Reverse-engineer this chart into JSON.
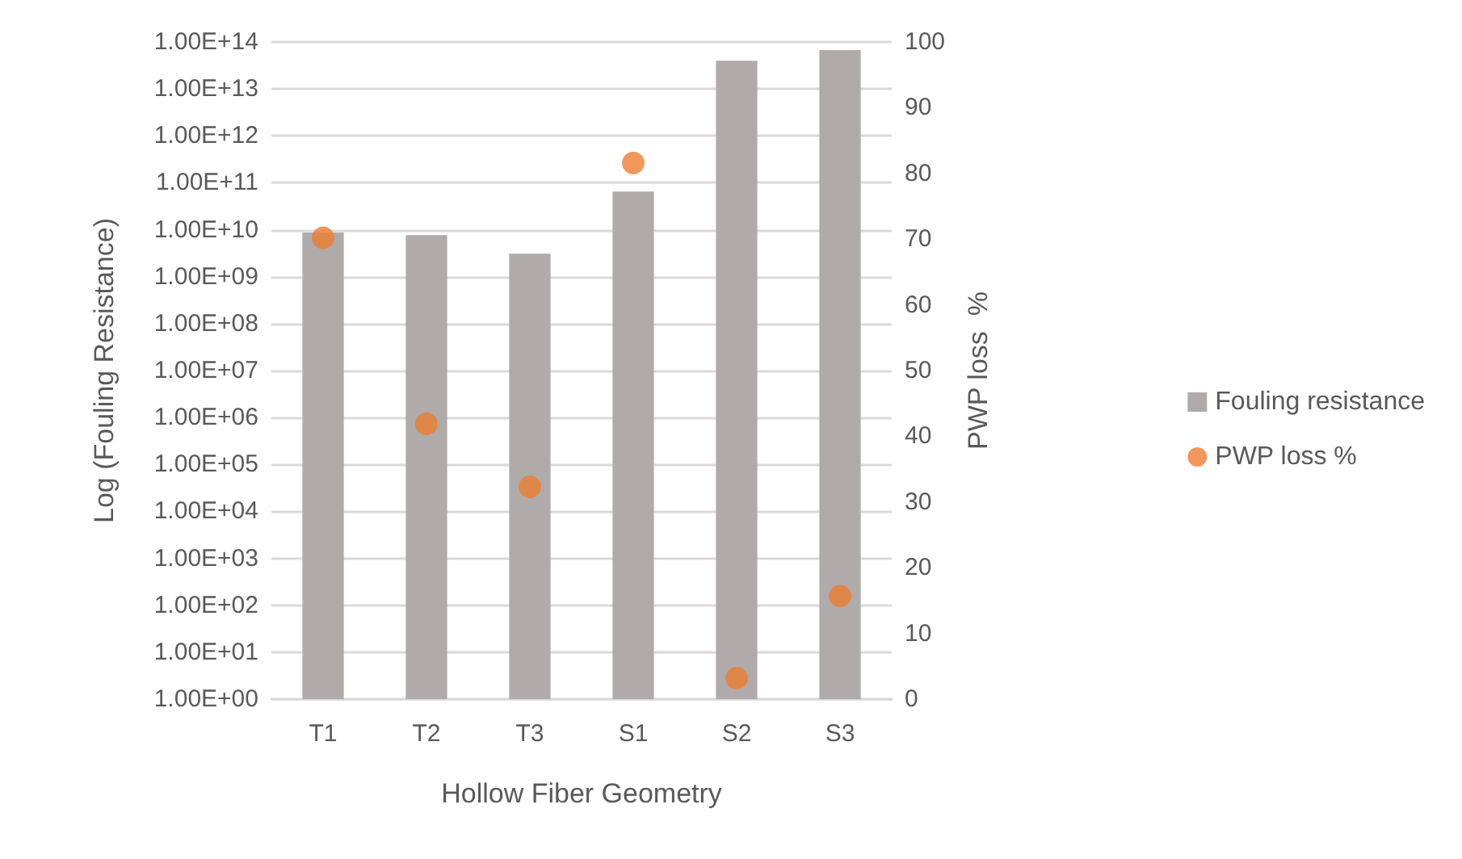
{
  "chart_data": {
    "type": "bar",
    "xlabel": "Hollow Fiber Geometry",
    "ylabel": "Log (Fouling Resistance)",
    "y2label": "PWP loss  %",
    "categories": [
      "T1",
      "T2",
      "T3",
      "S1",
      "S2",
      "S3"
    ],
    "series": [
      {
        "name": "Fouling resistance",
        "color": "#afabab",
        "values": [
          8700000000.0,
          7700000000.0,
          3100000000.0,
          65000000000.0,
          40000000000000.0,
          67000000000000.0
        ]
      },
      {
        "name": "PWP loss %",
        "type": "scatter",
        "axis": "y2",
        "color": "#ed7d31",
        "values": [
          70.2,
          41.9,
          32.3,
          81.6,
          3.2,
          15.7
        ]
      }
    ],
    "log": "y",
    "ylim": [
      1,
      100000000000000.0
    ],
    "yticks": [
      {
        "value": 1,
        "label": "1.00E+00"
      },
      {
        "value": 10,
        "label": "1.00E+01"
      },
      {
        "value": 100,
        "label": "1.00E+02"
      },
      {
        "value": 1000,
        "label": "1.00E+03"
      },
      {
        "value": 10000.0,
        "label": "1.00E+04"
      },
      {
        "value": 100000.0,
        "label": "1.00E+05"
      },
      {
        "value": 1000000.0,
        "label": "1.00E+06"
      },
      {
        "value": 10000000.0,
        "label": "1.00E+07"
      },
      {
        "value": 100000000.0,
        "label": "1.00E+08"
      },
      {
        "value": 1000000000.0,
        "label": "1.00E+09"
      },
      {
        "value": 10000000000.0,
        "label": "1.00E+10"
      },
      {
        "value": 100000000000.0,
        "label": "1.00E+11"
      },
      {
        "value": 1000000000000.0,
        "label": "1.00E+12"
      },
      {
        "value": 10000000000000.0,
        "label": "1.00E+13"
      },
      {
        "value": 100000000000000.0,
        "label": "1.00E+14"
      }
    ],
    "y2lim": [
      0,
      100
    ],
    "y2ticks": [
      0,
      10,
      20,
      30,
      40,
      50,
      60,
      70,
      80,
      90,
      100
    ],
    "grid": "y",
    "legend": "right",
    "marker": "circle"
  }
}
